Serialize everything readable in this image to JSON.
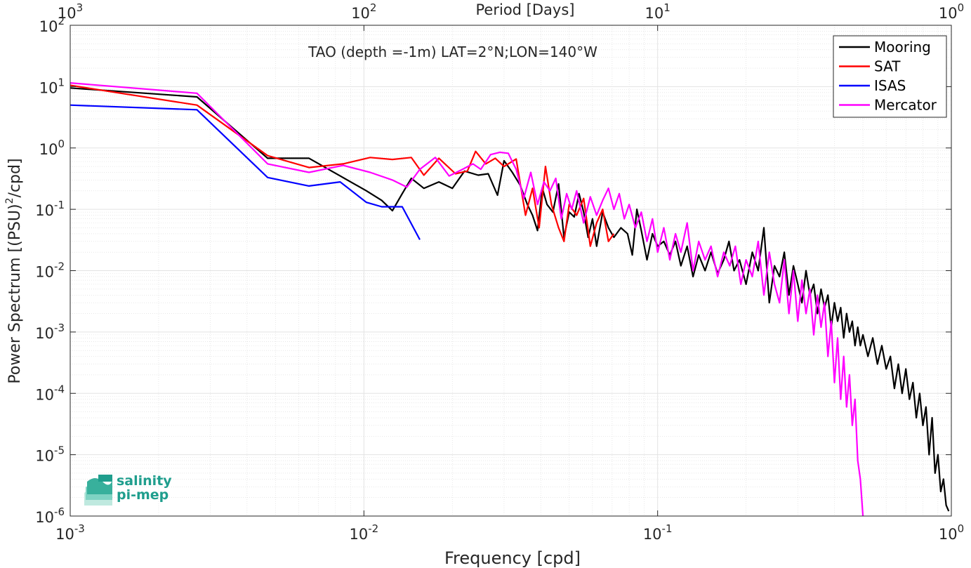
{
  "logo": {
    "line1": "salinity",
    "line2": "pi-mep"
  },
  "chart_data": {
    "type": "line",
    "title": "TAO (depth =-1m) LAT=2°N;LON=140°W",
    "xlabel": "Frequency [cpd]",
    "ylabel": "Power Spectrum [(PSU)",
    "ylabel_sup": "2",
    "ylabel_end": "/cpd]",
    "top_xlabel": "Period [Days]",
    "x_scale": "log",
    "y_scale": "log",
    "xlim": [
      0.001,
      1
    ],
    "ylim": [
      1e-06,
      100
    ],
    "grid": true,
    "legend_position": "top-right",
    "x_ticks": [
      {
        "value": 0.001,
        "base": "10",
        "exp": "-3"
      },
      {
        "value": 0.01,
        "base": "10",
        "exp": "-2"
      },
      {
        "value": 0.1,
        "base": "10",
        "exp": "-1"
      },
      {
        "value": 1,
        "base": "10",
        "exp": "0"
      }
    ],
    "y_ticks": [
      {
        "value": 1e-06,
        "base": "10",
        "exp": "-6"
      },
      {
        "value": 1e-05,
        "base": "10",
        "exp": "-5"
      },
      {
        "value": 0.0001,
        "base": "10",
        "exp": "-4"
      },
      {
        "value": 0.001,
        "base": "10",
        "exp": "-3"
      },
      {
        "value": 0.01,
        "base": "10",
        "exp": "-2"
      },
      {
        "value": 0.1,
        "base": "10",
        "exp": "-1"
      },
      {
        "value": 1,
        "base": "10",
        "exp": "0"
      },
      {
        "value": 10,
        "base": "10",
        "exp": "1"
      },
      {
        "value": 100,
        "base": "10",
        "exp": "2"
      }
    ],
    "top_ticks": [
      {
        "frequency": 0.001,
        "period_days": 1000,
        "base": "10",
        "exp": "3"
      },
      {
        "frequency": 0.01,
        "period_days": 100,
        "base": "10",
        "exp": "2"
      },
      {
        "frequency": 0.1,
        "period_days": 10,
        "base": "10",
        "exp": "1"
      },
      {
        "frequency": 1,
        "period_days": 1,
        "base": "10",
        "exp": "0"
      }
    ],
    "series": [
      {
        "name": "Mooring",
        "color": "#000000",
        "points": [
          [
            0.001,
            9.5
          ],
          [
            0.0027,
            6.8
          ],
          [
            0.0047,
            0.68
          ],
          [
            0.0065,
            0.68
          ],
          [
            0.0083,
            0.35
          ],
          [
            0.0102,
            0.2
          ],
          [
            0.0115,
            0.14
          ],
          [
            0.0125,
            0.095
          ],
          [
            0.0135,
            0.18
          ],
          [
            0.0145,
            0.32
          ],
          [
            0.016,
            0.22
          ],
          [
            0.018,
            0.28
          ],
          [
            0.02,
            0.22
          ],
          [
            0.022,
            0.42
          ],
          [
            0.0245,
            0.36
          ],
          [
            0.0265,
            0.38
          ],
          [
            0.0285,
            0.17
          ],
          [
            0.03,
            0.62
          ],
          [
            0.032,
            0.4
          ],
          [
            0.034,
            0.25
          ],
          [
            0.036,
            0.12
          ],
          [
            0.0375,
            0.08
          ],
          [
            0.039,
            0.045
          ],
          [
            0.0405,
            0.22
          ],
          [
            0.042,
            0.12
          ],
          [
            0.044,
            0.09
          ],
          [
            0.046,
            0.26
          ],
          [
            0.048,
            0.035
          ],
          [
            0.05,
            0.09
          ],
          [
            0.052,
            0.075
          ],
          [
            0.054,
            0.18
          ],
          [
            0.056,
            0.09
          ],
          [
            0.058,
            0.035
          ],
          [
            0.06,
            0.07
          ],
          [
            0.062,
            0.025
          ],
          [
            0.065,
            0.09
          ],
          [
            0.068,
            0.05
          ],
          [
            0.071,
            0.035
          ],
          [
            0.075,
            0.05
          ],
          [
            0.079,
            0.04
          ],
          [
            0.082,
            0.018
          ],
          [
            0.085,
            0.1
          ],
          [
            0.088,
            0.045
          ],
          [
            0.092,
            0.015
          ],
          [
            0.096,
            0.04
          ],
          [
            0.1,
            0.025
          ],
          [
            0.105,
            0.03
          ],
          [
            0.11,
            0.018
          ],
          [
            0.115,
            0.03
          ],
          [
            0.12,
            0.012
          ],
          [
            0.126,
            0.025
          ],
          [
            0.132,
            0.008
          ],
          [
            0.138,
            0.018
          ],
          [
            0.145,
            0.01
          ],
          [
            0.152,
            0.02
          ],
          [
            0.16,
            0.009
          ],
          [
            0.168,
            0.015
          ],
          [
            0.175,
            0.03
          ],
          [
            0.182,
            0.01
          ],
          [
            0.19,
            0.015
          ],
          [
            0.2,
            0.006
          ],
          [
            0.21,
            0.02
          ],
          [
            0.22,
            0.01
          ],
          [
            0.23,
            0.05
          ],
          [
            0.24,
            0.003
          ],
          [
            0.25,
            0.012
          ],
          [
            0.26,
            0.008
          ],
          [
            0.27,
            0.02
          ],
          [
            0.28,
            0.004
          ],
          [
            0.29,
            0.012
          ],
          [
            0.3,
            0.006
          ],
          [
            0.31,
            0.003
          ],
          [
            0.32,
            0.01
          ],
          [
            0.33,
            0.004
          ],
          [
            0.34,
            0.006
          ],
          [
            0.35,
            0.002
          ],
          [
            0.36,
            0.005
          ],
          [
            0.37,
            0.0025
          ],
          [
            0.38,
            0.004
          ],
          [
            0.39,
            0.0012
          ],
          [
            0.4,
            0.003
          ],
          [
            0.41,
            0.0015
          ],
          [
            0.42,
            0.0025
          ],
          [
            0.43,
            0.0008
          ],
          [
            0.44,
            0.002
          ],
          [
            0.45,
            0.001
          ],
          [
            0.46,
            0.0015
          ],
          [
            0.47,
            0.0006
          ],
          [
            0.48,
            0.0012
          ],
          [
            0.49,
            0.0006
          ],
          [
            0.5,
            0.0009
          ],
          [
            0.52,
            0.0004
          ],
          [
            0.54,
            0.0008
          ],
          [
            0.56,
            0.0003
          ],
          [
            0.58,
            0.0006
          ],
          [
            0.6,
            0.00025
          ],
          [
            0.62,
            0.0004
          ],
          [
            0.64,
            0.00012
          ],
          [
            0.66,
            0.0003
          ],
          [
            0.68,
            0.0001
          ],
          [
            0.7,
            0.00025
          ],
          [
            0.72,
            8e-05
          ],
          [
            0.74,
            0.00015
          ],
          [
            0.76,
            4e-05
          ],
          [
            0.78,
            0.0001
          ],
          [
            0.8,
            3e-05
          ],
          [
            0.82,
            6e-05
          ],
          [
            0.84,
            1e-05
          ],
          [
            0.86,
            4e-05
          ],
          [
            0.88,
            5e-06
          ],
          [
            0.9,
            1e-05
          ],
          [
            0.92,
            2.5e-06
          ],
          [
            0.94,
            4e-06
          ],
          [
            0.96,
            1.5e-06
          ],
          [
            0.98,
            1.2e-06
          ]
        ]
      },
      {
        "name": "SAT",
        "color": "#ff0000",
        "points": [
          [
            0.001,
            10.5
          ],
          [
            0.0027,
            5.0
          ],
          [
            0.0047,
            0.75
          ],
          [
            0.0065,
            0.48
          ],
          [
            0.0085,
            0.55
          ],
          [
            0.0105,
            0.7
          ],
          [
            0.0125,
            0.65
          ],
          [
            0.0145,
            0.7
          ],
          [
            0.016,
            0.36
          ],
          [
            0.018,
            0.68
          ],
          [
            0.0205,
            0.38
          ],
          [
            0.0225,
            0.42
          ],
          [
            0.024,
            0.88
          ],
          [
            0.026,
            0.55
          ],
          [
            0.028,
            0.68
          ],
          [
            0.03,
            0.5
          ],
          [
            0.033,
            0.66
          ],
          [
            0.0355,
            0.08
          ],
          [
            0.0375,
            0.22
          ],
          [
            0.0395,
            0.05
          ],
          [
            0.0415,
            0.5
          ],
          [
            0.0435,
            0.12
          ],
          [
            0.046,
            0.05
          ],
          [
            0.048,
            0.03
          ],
          [
            0.05,
            0.12
          ],
          [
            0.053,
            0.08
          ],
          [
            0.056,
            0.15
          ],
          [
            0.059,
            0.025
          ],
          [
            0.062,
            0.06
          ],
          [
            0.065,
            0.1
          ],
          [
            0.068,
            0.03
          ],
          [
            0.071,
            0.04
          ]
        ]
      },
      {
        "name": "ISAS",
        "color": "#0000ff",
        "points": [
          [
            0.001,
            5.0
          ],
          [
            0.0027,
            4.2
          ],
          [
            0.0047,
            0.33
          ],
          [
            0.0065,
            0.24
          ],
          [
            0.0083,
            0.28
          ],
          [
            0.0102,
            0.13
          ],
          [
            0.0115,
            0.11
          ],
          [
            0.0135,
            0.11
          ],
          [
            0.0155,
            0.032
          ]
        ]
      },
      {
        "name": "Mercator",
        "color": "#ff00ff",
        "points": [
          [
            0.001,
            11.5
          ],
          [
            0.0027,
            7.8
          ],
          [
            0.0047,
            0.55
          ],
          [
            0.0065,
            0.4
          ],
          [
            0.0085,
            0.52
          ],
          [
            0.0105,
            0.4
          ],
          [
            0.0125,
            0.3
          ],
          [
            0.014,
            0.23
          ],
          [
            0.0155,
            0.45
          ],
          [
            0.0175,
            0.7
          ],
          [
            0.0195,
            0.35
          ],
          [
            0.0215,
            0.44
          ],
          [
            0.0235,
            0.55
          ],
          [
            0.025,
            0.45
          ],
          [
            0.027,
            0.78
          ],
          [
            0.029,
            0.85
          ],
          [
            0.031,
            0.82
          ],
          [
            0.033,
            0.45
          ],
          [
            0.035,
            0.15
          ],
          [
            0.037,
            0.4
          ],
          [
            0.039,
            0.12
          ],
          [
            0.041,
            0.28
          ],
          [
            0.043,
            0.2
          ],
          [
            0.045,
            0.32
          ],
          [
            0.047,
            0.07
          ],
          [
            0.049,
            0.18
          ],
          [
            0.051,
            0.1
          ],
          [
            0.053,
            0.2
          ],
          [
            0.056,
            0.06
          ],
          [
            0.059,
            0.16
          ],
          [
            0.062,
            0.08
          ],
          [
            0.065,
            0.14
          ],
          [
            0.068,
            0.22
          ],
          [
            0.071,
            0.1
          ],
          [
            0.074,
            0.18
          ],
          [
            0.077,
            0.07
          ],
          [
            0.08,
            0.12
          ],
          [
            0.084,
            0.05
          ],
          [
            0.088,
            0.09
          ],
          [
            0.092,
            0.03
          ],
          [
            0.096,
            0.07
          ],
          [
            0.1,
            0.02
          ],
          [
            0.105,
            0.05
          ],
          [
            0.11,
            0.015
          ],
          [
            0.115,
            0.04
          ],
          [
            0.12,
            0.02
          ],
          [
            0.126,
            0.06
          ],
          [
            0.132,
            0.01
          ],
          [
            0.138,
            0.03
          ],
          [
            0.145,
            0.015
          ],
          [
            0.152,
            0.025
          ],
          [
            0.16,
            0.008
          ],
          [
            0.168,
            0.02
          ],
          [
            0.176,
            0.012
          ],
          [
            0.184,
            0.025
          ],
          [
            0.192,
            0.006
          ],
          [
            0.2,
            0.015
          ],
          [
            0.21,
            0.008
          ],
          [
            0.22,
            0.03
          ],
          [
            0.23,
            0.004
          ],
          [
            0.24,
            0.02
          ],
          [
            0.25,
            0.006
          ],
          [
            0.26,
            0.003
          ],
          [
            0.27,
            0.015
          ],
          [
            0.28,
            0.002
          ],
          [
            0.29,
            0.01
          ],
          [
            0.3,
            0.0015
          ],
          [
            0.31,
            0.007
          ],
          [
            0.32,
            0.002
          ],
          [
            0.33,
            0.005
          ],
          [
            0.34,
            0.0009
          ],
          [
            0.35,
            0.004
          ],
          [
            0.36,
            0.0012
          ],
          [
            0.37,
            0.003
          ],
          [
            0.38,
            0.0004
          ],
          [
            0.39,
            0.0015
          ],
          [
            0.4,
            0.00015
          ],
          [
            0.41,
            0.0008
          ],
          [
            0.42,
            8e-05
          ],
          [
            0.43,
            0.0004
          ],
          [
            0.44,
            6e-05
          ],
          [
            0.45,
            0.0002
          ],
          [
            0.46,
            3e-05
          ],
          [
            0.47,
            8e-05
          ],
          [
            0.48,
            8e-06
          ],
          [
            0.49,
            4e-06
          ],
          [
            0.5,
            1e-06
          ]
        ]
      }
    ]
  }
}
